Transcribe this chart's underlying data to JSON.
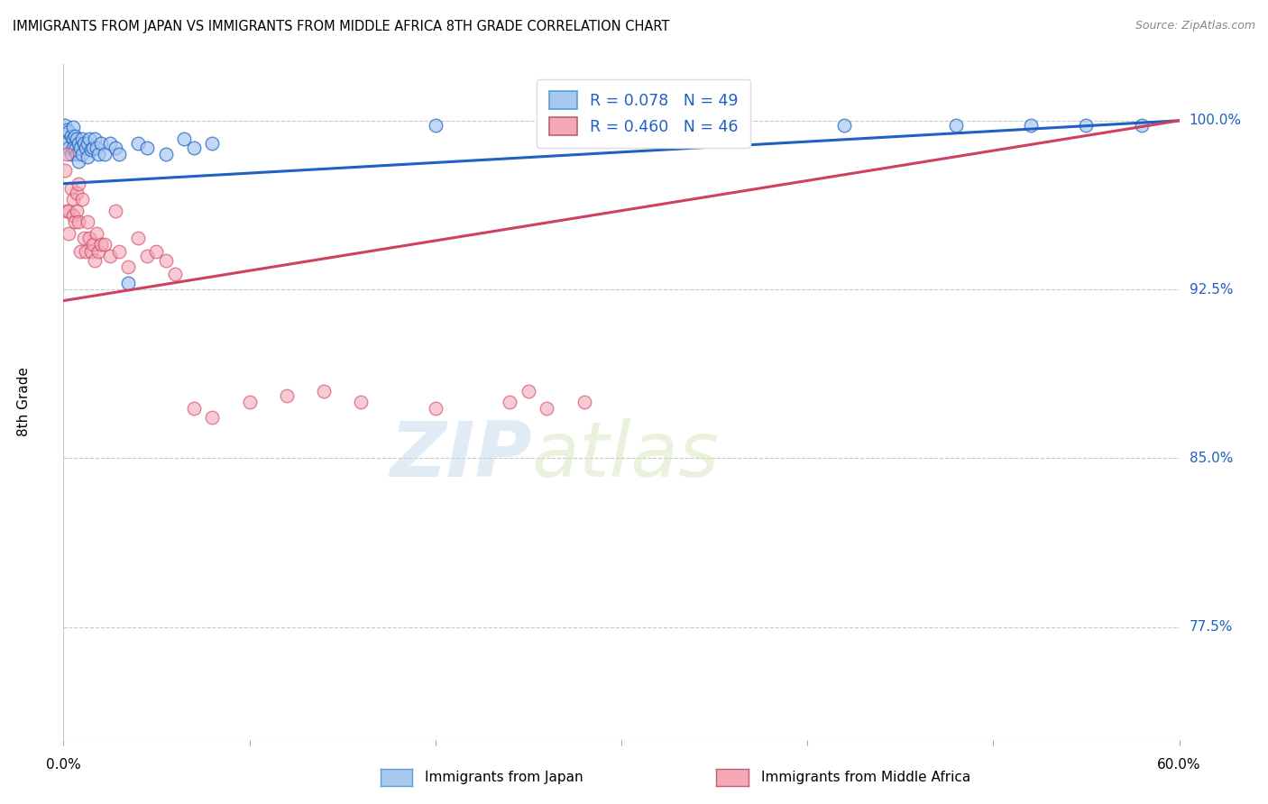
{
  "title": "IMMIGRANTS FROM JAPAN VS IMMIGRANTS FROM MIDDLE AFRICA 8TH GRADE CORRELATION CHART",
  "source": "Source: ZipAtlas.com",
  "ylabel": "8th Grade",
  "ytick_labels": [
    "100.0%",
    "92.5%",
    "85.0%",
    "77.5%"
  ],
  "ytick_values": [
    1.0,
    0.925,
    0.85,
    0.775
  ],
  "xlim": [
    0.0,
    0.6
  ],
  "ylim": [
    0.725,
    1.025
  ],
  "legend_label_1": "R = 0.078   N = 49",
  "legend_label_2": "R = 0.460   N = 46",
  "legend_color_1": "#A8C8F0",
  "legend_color_2": "#F4A8B8",
  "japan_color": "#A8C8F0",
  "middle_africa_color": "#F4A8B8",
  "trendline_japan_color": "#2060C0",
  "trendline_africa_color": "#D04060",
  "japan_x": [
    0.001,
    0.002,
    0.002,
    0.003,
    0.003,
    0.004,
    0.004,
    0.005,
    0.005,
    0.005,
    0.006,
    0.006,
    0.007,
    0.007,
    0.008,
    0.008,
    0.009,
    0.01,
    0.01,
    0.011,
    0.012,
    0.013,
    0.013,
    0.014,
    0.015,
    0.016,
    0.017,
    0.018,
    0.019,
    0.02,
    0.022,
    0.025,
    0.028,
    0.03,
    0.035,
    0.04,
    0.045,
    0.055,
    0.065,
    0.07,
    0.08,
    0.2,
    0.3,
    0.35,
    0.42,
    0.48,
    0.52,
    0.55,
    0.58
  ],
  "japan_y": [
    0.998,
    0.996,
    0.99,
    0.995,
    0.988,
    0.993,
    0.985,
    0.997,
    0.992,
    0.988,
    0.993,
    0.987,
    0.992,
    0.985,
    0.99,
    0.982,
    0.988,
    0.992,
    0.985,
    0.99,
    0.988,
    0.99,
    0.984,
    0.992,
    0.987,
    0.988,
    0.992,
    0.988,
    0.985,
    0.99,
    0.985,
    0.99,
    0.988,
    0.985,
    0.928,
    0.99,
    0.988,
    0.985,
    0.992,
    0.988,
    0.99,
    0.998,
    0.998,
    0.998,
    0.998,
    0.998,
    0.998,
    0.998,
    0.998
  ],
  "africa_x": [
    0.001,
    0.002,
    0.002,
    0.003,
    0.003,
    0.004,
    0.005,
    0.005,
    0.006,
    0.007,
    0.007,
    0.008,
    0.008,
    0.009,
    0.01,
    0.011,
    0.012,
    0.013,
    0.014,
    0.015,
    0.016,
    0.017,
    0.018,
    0.019,
    0.02,
    0.022,
    0.025,
    0.028,
    0.03,
    0.035,
    0.04,
    0.045,
    0.05,
    0.055,
    0.06,
    0.07,
    0.08,
    0.1,
    0.12,
    0.14,
    0.16,
    0.2,
    0.24,
    0.25,
    0.26,
    0.28
  ],
  "africa_y": [
    0.978,
    0.985,
    0.96,
    0.96,
    0.95,
    0.97,
    0.958,
    0.965,
    0.955,
    0.968,
    0.96,
    0.972,
    0.955,
    0.942,
    0.965,
    0.948,
    0.942,
    0.955,
    0.948,
    0.942,
    0.945,
    0.938,
    0.95,
    0.942,
    0.945,
    0.945,
    0.94,
    0.96,
    0.942,
    0.935,
    0.948,
    0.94,
    0.942,
    0.938,
    0.932,
    0.872,
    0.868,
    0.875,
    0.878,
    0.88,
    0.875,
    0.872,
    0.875,
    0.88,
    0.872,
    0.875
  ],
  "watermark_zip": "ZIP",
  "watermark_atlas": "atlas",
  "bottom_label_1": "Immigrants from Japan",
  "bottom_label_2": "Immigrants from Middle Africa"
}
